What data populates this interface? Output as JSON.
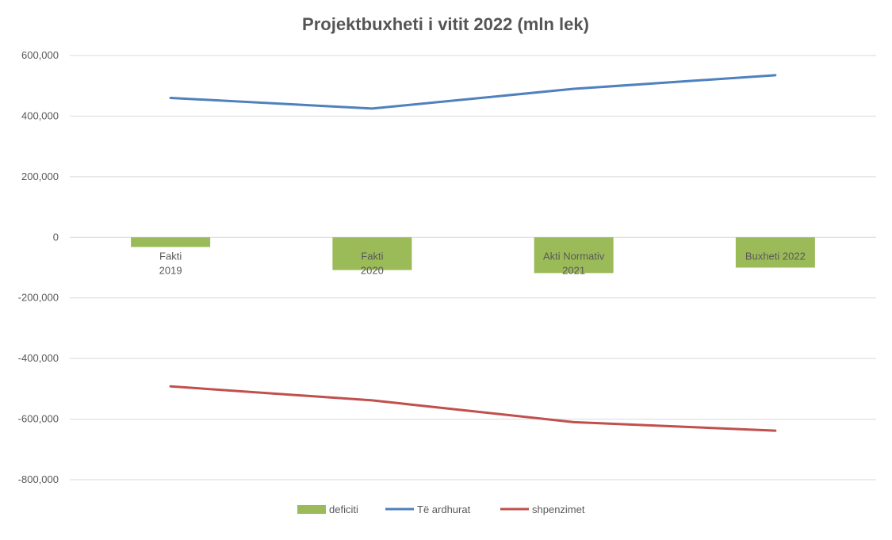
{
  "chart_data": {
    "type": "bar+line",
    "title": "Projektbuxheti i vitit 2022 (mln lek)",
    "xlabel": "",
    "ylabel": "",
    "categories": [
      [
        "Fakti",
        "2019"
      ],
      [
        "Fakti",
        "2020"
      ],
      [
        "Akti Normativ",
        "2021"
      ],
      [
        "Buxheti 2022"
      ]
    ],
    "ylim": [
      -800000,
      600000
    ],
    "yticks": [
      600000,
      400000,
      200000,
      0,
      -200000,
      -400000,
      -600000,
      -800000
    ],
    "ytick_labels": [
      "600,000",
      "400,000",
      "200,000",
      "0",
      "-200,000",
      "-400,000",
      "-600,000",
      "-800,000"
    ],
    "grid": true,
    "legend_position": "bottom",
    "series": [
      {
        "name": "deficiti",
        "kind": "bar",
        "color": "#9bbb59",
        "values": [
          -32000,
          -108000,
          -118000,
          -100000
        ]
      },
      {
        "name": "Të ardhurat",
        "kind": "line",
        "color": "#4f81bd",
        "values": [
          460000,
          425000,
          490000,
          535000
        ]
      },
      {
        "name": "shpenzimet",
        "kind": "line",
        "color": "#c0504d",
        "values": [
          -492000,
          -538000,
          -610000,
          -638000
        ]
      }
    ]
  }
}
